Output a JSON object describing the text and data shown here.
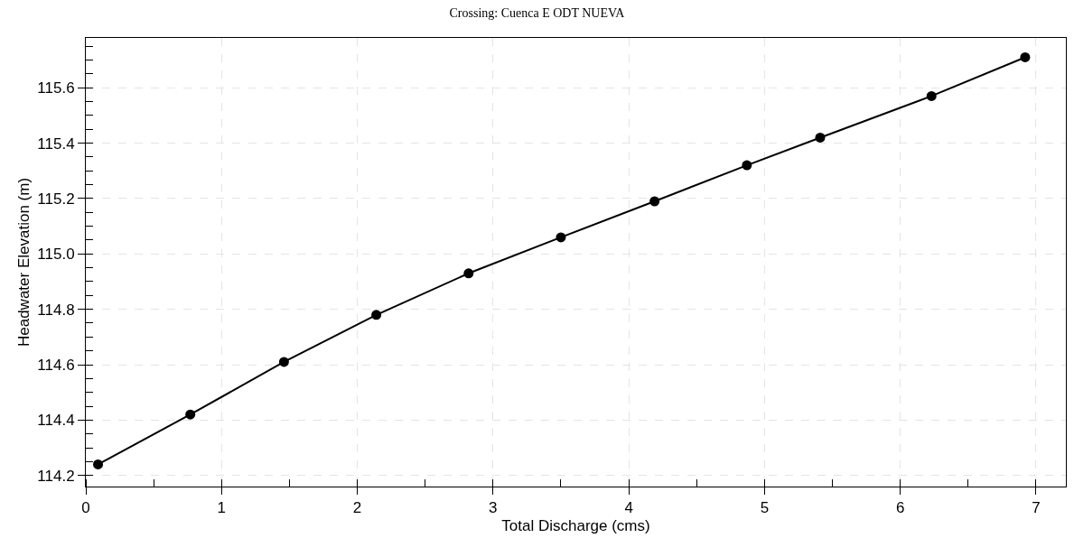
{
  "chart_data": {
    "type": "line",
    "title": "Crossing: Cuenca E ODT NUEVA",
    "xlabel": "Total Discharge (cms)",
    "ylabel": "Headwater Elevation (m)",
    "x": [
      0.09,
      0.77,
      1.46,
      2.14,
      2.82,
      3.5,
      4.19,
      4.87,
      5.41,
      6.23,
      6.92
    ],
    "series": [
      {
        "color": "#000000",
        "values": [
          114.24,
          114.42,
          114.61,
          114.78,
          114.93,
          115.06,
          115.19,
          115.32,
          115.42,
          115.57,
          115.71
        ]
      }
    ],
    "xlim": [
      0,
      7.22
    ],
    "ylim": [
      114.16,
      115.78
    ],
    "xticks": [
      0,
      1,
      2,
      3,
      4,
      5,
      6,
      7
    ],
    "yticks": [
      {
        "value": 114.2,
        "label": "114.2"
      },
      {
        "value": 114.4,
        "label": "114.4"
      },
      {
        "value": 114.6,
        "label": "114.6"
      },
      {
        "value": 114.8,
        "label": "114.8"
      },
      {
        "value": 115.0,
        "label": "115.0"
      },
      {
        "value": 115.2,
        "label": "115.2"
      },
      {
        "value": 115.4,
        "label": "115.4"
      },
      {
        "value": 115.6,
        "label": "115.6"
      }
    ],
    "grid": true,
    "legend": false,
    "marker": "circle",
    "line_style": "solid"
  }
}
